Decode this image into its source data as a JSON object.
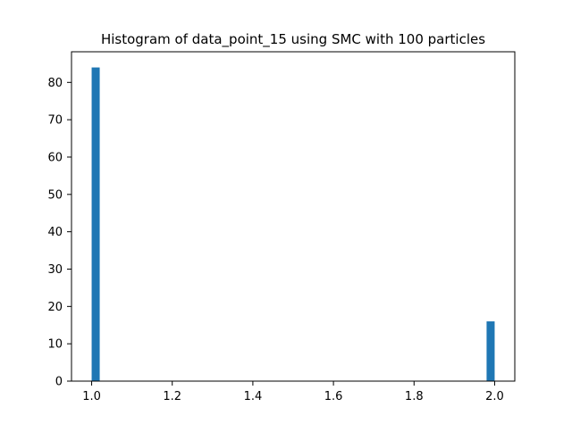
{
  "chart_data": {
    "type": "bar",
    "title": "Histogram of data_point_15 using SMC with 100 particles",
    "xlabel": "",
    "ylabel": "",
    "xlim": [
      0.95,
      2.05
    ],
    "ylim": [
      0,
      88.2
    ],
    "grid": false,
    "x_ticks": [
      "1.0",
      "1.2",
      "1.4",
      "1.6",
      "1.8",
      "2.0"
    ],
    "y_ticks": [
      "0",
      "10",
      "20",
      "30",
      "40",
      "50",
      "60",
      "70",
      "80"
    ],
    "bins": [
      {
        "x_start": 1.0,
        "x_end": 1.02,
        "value": 84
      },
      {
        "x_start": 1.98,
        "x_end": 2.0,
        "value": 16
      }
    ],
    "colors": {
      "bar": "#1f77b4",
      "axis": "#000000",
      "background": "#ffffff"
    }
  }
}
